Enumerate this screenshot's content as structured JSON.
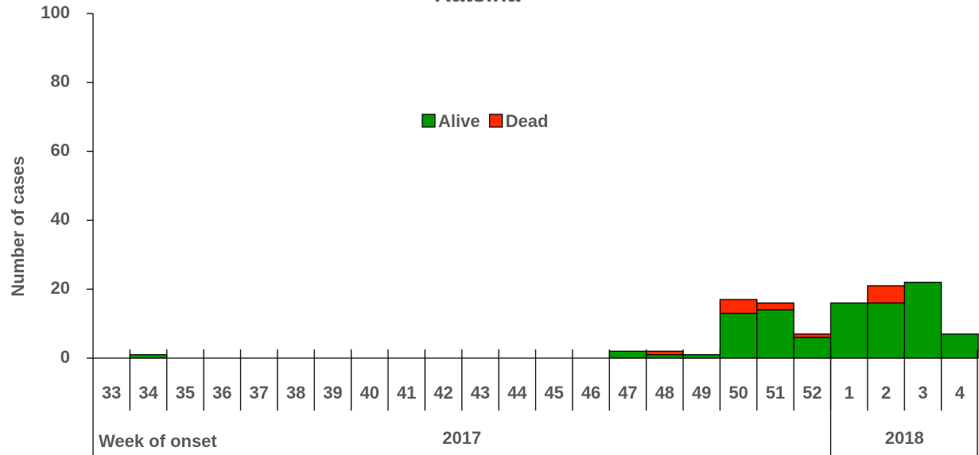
{
  "chart_data": {
    "type": "bar",
    "stacked": true,
    "title": "Katsina",
    "x_label": "Week of onset",
    "y_label": "Number of cases",
    "categories": [
      "33",
      "34",
      "35",
      "36",
      "37",
      "38",
      "39",
      "40",
      "41",
      "42",
      "43",
      "44",
      "45",
      "46",
      "47",
      "48",
      "49",
      "50",
      "51",
      "52",
      "1",
      "2",
      "3",
      "4"
    ],
    "x_groups": [
      "2017",
      "2018"
    ],
    "series": [
      {
        "name": "Alive",
        "color": "#009900",
        "values": [
          0,
          1,
          0,
          0,
          0,
          0,
          0,
          0,
          0,
          0,
          0,
          0,
          0,
          0,
          2,
          1,
          1,
          13,
          14,
          6,
          16,
          16,
          22,
          7
        ]
      },
      {
        "name": "Dead",
        "color": "#ff2a00",
        "values": [
          0,
          0,
          0,
          0,
          0,
          0,
          0,
          0,
          0,
          0,
          0,
          0,
          0,
          0,
          0,
          1,
          0,
          4,
          2,
          1,
          0,
          5,
          0,
          0
        ]
      }
    ],
    "ylim": [
      0,
      100
    ],
    "yticks": [
      0,
      20,
      40,
      60,
      80,
      100
    ]
  }
}
